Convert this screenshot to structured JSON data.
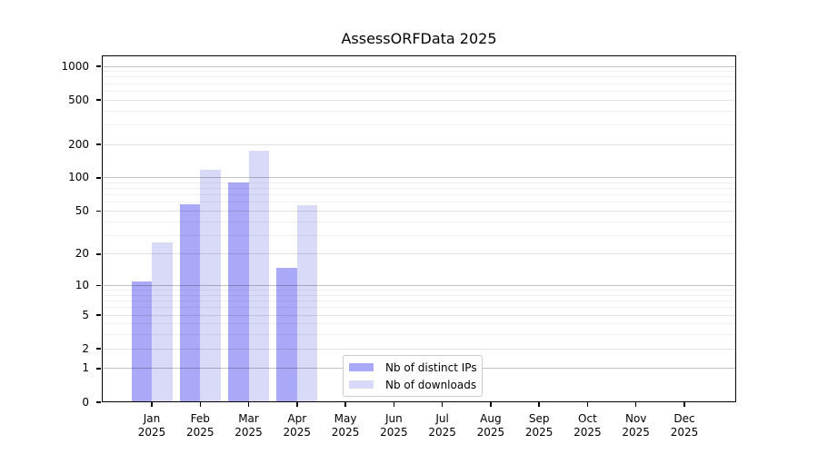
{
  "chart_data": {
    "type": "bar",
    "title": "AssessORFData 2025",
    "y_scale": "log1p",
    "y_ticks": [
      0,
      1,
      2,
      5,
      10,
      20,
      50,
      100,
      200,
      500,
      1000
    ],
    "y_max": 1250,
    "grid": true,
    "legend_position": "bottom-center",
    "categories": [
      {
        "month": "Jan",
        "year": "2025"
      },
      {
        "month": "Feb",
        "year": "2025"
      },
      {
        "month": "Mar",
        "year": "2025"
      },
      {
        "month": "Apr",
        "year": "2025"
      },
      {
        "month": "May",
        "year": "2025"
      },
      {
        "month": "Jun",
        "year": "2025"
      },
      {
        "month": "Jul",
        "year": "2025"
      },
      {
        "month": "Aug",
        "year": "2025"
      },
      {
        "month": "Sep",
        "year": "2025"
      },
      {
        "month": "Oct",
        "year": "2025"
      },
      {
        "month": "Nov",
        "year": "2025"
      },
      {
        "month": "Dec",
        "year": "2025"
      }
    ],
    "series": [
      {
        "name": "Nb of distinct IPs",
        "color": "#a9a9f8",
        "values": [
          11,
          58,
          90,
          15,
          null,
          null,
          null,
          null,
          null,
          null,
          null,
          null
        ]
      },
      {
        "name": "Nb of downloads",
        "color": "#d9d9f8",
        "values": [
          26,
          118,
          177,
          57,
          null,
          null,
          null,
          null,
          null,
          null,
          null,
          null
        ]
      }
    ],
    "colors": {
      "grid_major": "rgba(0,0,0,0.24)",
      "grid_mid": "rgba(0,0,0,0.115)",
      "grid_minor": "rgba(0,0,0,0.06)",
      "axis": "#000000"
    }
  }
}
